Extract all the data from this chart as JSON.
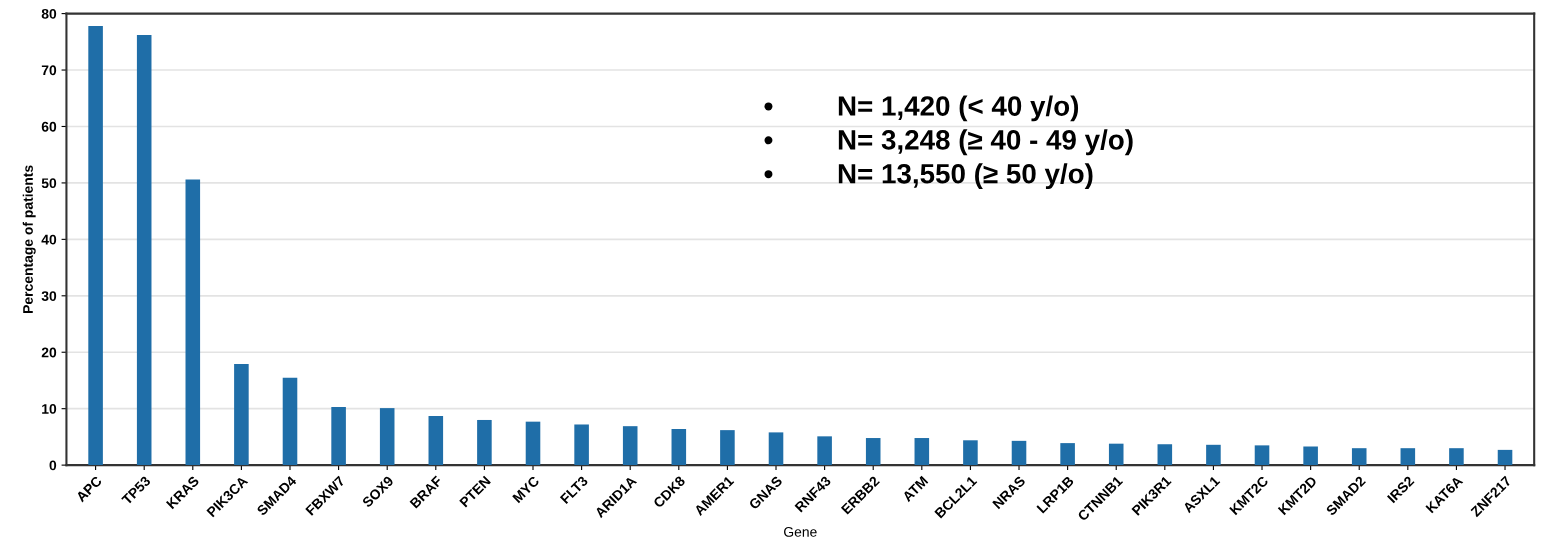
{
  "chart_data": {
    "type": "bar",
    "categories": [
      "APC",
      "TP53",
      "KRAS",
      "PIK3CA",
      "SMAD4",
      "FBXW7",
      "SOX9",
      "BRAF",
      "PTEN",
      "MYC",
      "FLT3",
      "ARID1A",
      "CDK8",
      "AMER1",
      "GNAS",
      "RNF43",
      "ERBB2",
      "ATM",
      "BCL2L1",
      "NRAS",
      "LRP1B",
      "CTNNB1",
      "PIK3R1",
      "ASXL1",
      "KMT2C",
      "KMT2D",
      "SMAD2",
      "IRS2",
      "KAT6A",
      "ZNF217"
    ],
    "values": [
      77.8,
      76.2,
      50.6,
      17.9,
      15.5,
      10.3,
      10.1,
      8.7,
      8.0,
      7.7,
      7.2,
      6.9,
      6.4,
      6.2,
      5.8,
      5.1,
      4.8,
      4.8,
      4.4,
      4.3,
      3.9,
      3.8,
      3.7,
      3.6,
      3.5,
      3.3,
      3.0,
      3.0,
      3.0,
      2.7
    ],
    "color": "#1f6ea8",
    "xlabel": "Gene",
    "ylabel": "Percentage of patients",
    "ylim": [
      0,
      80
    ],
    "yticks": [
      0,
      10,
      20,
      30,
      40,
      50,
      60,
      70,
      80
    ],
    "grid": "y",
    "annotations": [
      "•\tN= 1,420 (< 40 y/o)",
      "•\tN= 3,248 (≥ 40 - 49 y/o)",
      "•\tN= 13,550 (≥ 50 y/o)"
    ]
  }
}
